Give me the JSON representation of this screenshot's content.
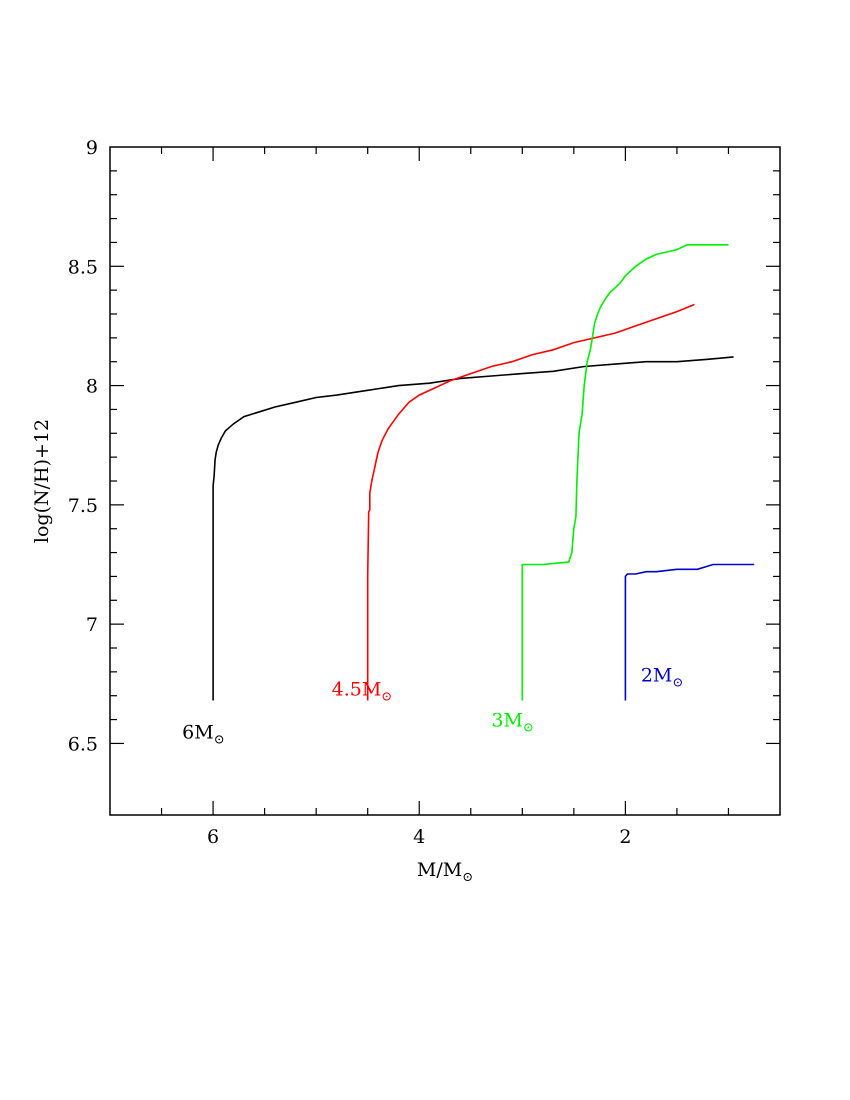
{
  "chart_data": {
    "type": "line",
    "title": "",
    "xlabel": "M/M",
    "xlabel_sub": "⊙",
    "ylabel": "log(N/H)+12",
    "xlim": [
      7,
      0.5
    ],
    "ylim": [
      6.2,
      9
    ],
    "x_reversed": true,
    "x_ticks": [
      6,
      4,
      2
    ],
    "x_tick_labels": [
      "6",
      "4",
      "2"
    ],
    "y_ticks": [
      6.5,
      7,
      7.5,
      8,
      8.5,
      9
    ],
    "y_tick_labels": [
      "6.5",
      "7",
      "7.5",
      "8",
      "8.5",
      "9"
    ],
    "x_minor_step": 0.5,
    "y_minor_step": 0.1,
    "grid": false,
    "legend": "none",
    "series": [
      {
        "name": "6M",
        "name_sub": "⊙",
        "color": "#000000",
        "label_at": [
          6.3,
          6.52
        ],
        "x": [
          6.0,
          6.0,
          5.99,
          5.98,
          5.97,
          5.95,
          5.92,
          5.88,
          5.8,
          5.7,
          5.55,
          5.4,
          5.2,
          5.0,
          4.8,
          4.5,
          4.2,
          3.9,
          3.6,
          3.3,
          3.0,
          2.7,
          2.4,
          2.1,
          1.8,
          1.7,
          1.5,
          1.2,
          0.95
        ],
        "y": [
          6.68,
          7.58,
          7.62,
          7.69,
          7.72,
          7.75,
          7.78,
          7.81,
          7.84,
          7.87,
          7.89,
          7.91,
          7.93,
          7.95,
          7.96,
          7.98,
          8.0,
          8.01,
          8.03,
          8.04,
          8.05,
          8.06,
          8.08,
          8.09,
          8.1,
          8.1,
          8.1,
          8.11,
          8.12
        ]
      },
      {
        "name": "4.5M",
        "name_sub": "⊙",
        "color": "#ff0000",
        "label_at": [
          4.85,
          6.7
        ],
        "x": [
          4.5,
          4.5,
          4.49,
          4.48,
          4.48,
          4.46,
          4.45,
          4.44,
          4.42,
          4.4,
          4.36,
          4.3,
          4.2,
          4.1,
          4.0,
          3.85,
          3.7,
          3.5,
          3.3,
          3.1,
          2.9,
          2.7,
          2.5,
          2.3,
          2.1,
          1.9,
          1.7,
          1.5,
          1.33
        ],
        "y": [
          6.68,
          7.2,
          7.47,
          7.48,
          7.55,
          7.6,
          7.62,
          7.64,
          7.68,
          7.72,
          7.77,
          7.82,
          7.88,
          7.93,
          7.96,
          7.99,
          8.02,
          8.05,
          8.08,
          8.1,
          8.13,
          8.15,
          8.18,
          8.2,
          8.22,
          8.25,
          8.28,
          8.31,
          8.34
        ]
      },
      {
        "name": "3M",
        "name_sub": "⊙",
        "color": "#00ee00",
        "label_at": [
          3.3,
          6.57
        ],
        "x": [
          3.0,
          3.0,
          2.8,
          2.55,
          2.52,
          2.5,
          2.48,
          2.47,
          2.45,
          2.42,
          2.4,
          2.37,
          2.34,
          2.32,
          2.3,
          2.27,
          2.24,
          2.2,
          2.15,
          2.1,
          2.05,
          2.0,
          1.9,
          1.8,
          1.7,
          1.6,
          1.5,
          1.4,
          1.0
        ],
        "y": [
          6.68,
          7.25,
          7.25,
          7.26,
          7.3,
          7.4,
          7.45,
          7.6,
          7.8,
          7.88,
          8.0,
          8.1,
          8.15,
          8.2,
          8.26,
          8.3,
          8.33,
          8.36,
          8.39,
          8.41,
          8.43,
          8.46,
          8.5,
          8.53,
          8.55,
          8.56,
          8.57,
          8.59,
          8.59
        ]
      },
      {
        "name": "2M",
        "name_sub": "⊙",
        "color": "#0000cc",
        "label_at": [
          1.85,
          6.76
        ],
        "x": [
          2.0,
          2.0,
          1.98,
          1.9,
          1.8,
          1.7,
          1.5,
          1.3,
          1.15,
          0.75
        ],
        "y": [
          6.68,
          7.2,
          7.21,
          7.21,
          7.22,
          7.22,
          7.23,
          7.23,
          7.25,
          7.25
        ]
      }
    ]
  }
}
